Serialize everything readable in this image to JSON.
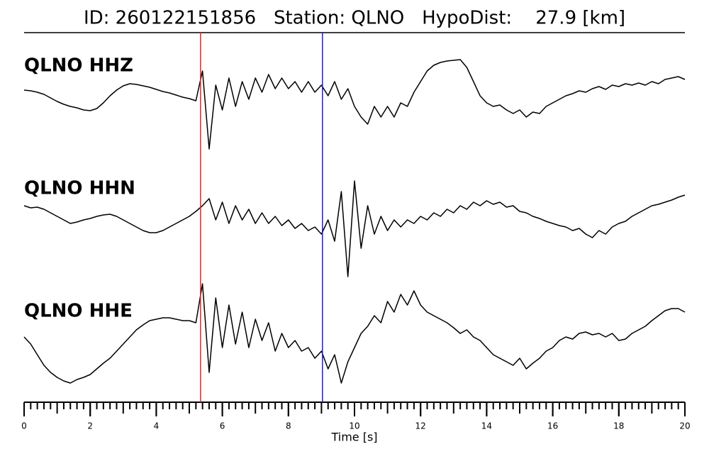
{
  "chart_data": {
    "type": "seismogram",
    "title": "ID: 260122151856   Station: QLNO   HypoDist:    27.9 [km]",
    "xlabel": "Time [s]",
    "xlim": [
      0,
      20
    ],
    "xticks": [
      0,
      2,
      4,
      6,
      8,
      10,
      12,
      14,
      16,
      18,
      20
    ],
    "xminor_step": 0.2,
    "ylim": [
      -80,
      80
    ],
    "line_color": "#000000",
    "label_color": "#4c9a00",
    "picks": [
      {
        "time": 5.34,
        "color": "#e8251f"
      },
      {
        "time": 9.03,
        "color": "#1f1fd8"
      }
    ],
    "x": [
      0,
      0.2,
      0.4,
      0.6,
      0.8,
      1,
      1.2,
      1.4,
      1.6,
      1.8,
      2,
      2.2,
      2.4,
      2.6,
      2.8,
      3,
      3.2,
      3.4,
      3.6,
      3.8,
      4,
      4.2,
      4.4,
      4.6,
      4.8,
      5,
      5.2,
      5.4,
      5.6,
      5.8,
      6,
      6.2,
      6.4,
      6.6,
      6.8,
      7,
      7.2,
      7.4,
      7.6,
      7.8,
      8,
      8.2,
      8.4,
      8.6,
      8.8,
      9,
      9.2,
      9.4,
      9.6,
      9.8,
      10,
      10.2,
      10.4,
      10.6,
      10.8,
      11,
      11.2,
      11.4,
      11.6,
      11.8,
      12,
      12.2,
      12.4,
      12.6,
      12.8,
      13,
      13.2,
      13.4,
      13.6,
      13.8,
      14,
      14.2,
      14.4,
      14.6,
      14.8,
      15,
      15.2,
      15.4,
      15.6,
      15.8,
      16,
      16.2,
      16.4,
      16.6,
      16.8,
      17,
      17.2,
      17.4,
      17.6,
      17.8,
      18,
      18.2,
      18.4,
      18.6,
      18.8,
      19,
      19.2,
      19.4,
      19.6,
      19.8,
      20
    ],
    "series": [
      {
        "name": "QLNO HHZ",
        "values": [
          3,
          2,
          0,
          -3,
          -8,
          -13,
          -17,
          -20,
          -22,
          -25,
          -26,
          -23,
          -15,
          -5,
          3,
          9,
          12,
          11,
          9,
          7,
          4,
          1,
          -1,
          -4,
          -7,
          -9,
          -12,
          30,
          -80,
          10,
          -25,
          20,
          -20,
          15,
          -10,
          20,
          0,
          25,
          5,
          20,
          5,
          15,
          0,
          15,
          0,
          10,
          -5,
          15,
          -10,
          5,
          -20,
          -35,
          -45,
          -20,
          -35,
          -20,
          -35,
          -15,
          -20,
          0,
          15,
          30,
          38,
          42,
          44,
          45,
          46,
          35,
          15,
          -5,
          -15,
          -20,
          -18,
          -25,
          -30,
          -25,
          -35,
          -28,
          -30,
          -20,
          -15,
          -10,
          -5,
          -2,
          2,
          0,
          5,
          8,
          4,
          10,
          8,
          12,
          10,
          13,
          10,
          15,
          12,
          18,
          20,
          22,
          18
        ]
      },
      {
        "name": "QLNO HHN",
        "values": [
          10,
          7,
          8,
          5,
          0,
          -5,
          -10,
          -15,
          -13,
          -10,
          -8,
          -5,
          -3,
          -2,
          -5,
          -10,
          -15,
          -20,
          -25,
          -28,
          -28,
          -25,
          -20,
          -15,
          -10,
          -5,
          2,
          10,
          20,
          -10,
          15,
          -15,
          10,
          -10,
          5,
          -15,
          0,
          -15,
          -5,
          -18,
          -10,
          -22,
          -15,
          -25,
          -20,
          -30,
          -10,
          -40,
          30,
          -90,
          45,
          -50,
          10,
          -30,
          -5,
          -25,
          -10,
          -20,
          -10,
          -15,
          -5,
          -10,
          0,
          -5,
          5,
          0,
          10,
          5,
          15,
          10,
          17,
          12,
          15,
          8,
          10,
          2,
          0,
          -5,
          -8,
          -12,
          -15,
          -18,
          -20,
          -25,
          -22,
          -30,
          -35,
          -25,
          -30,
          -20,
          -15,
          -12,
          -5,
          0,
          5,
          10,
          12,
          15,
          18,
          22,
          25
        ]
      },
      {
        "name": "QLNO HHE",
        "values": [
          -5,
          -15,
          -30,
          -45,
          -55,
          -62,
          -67,
          -70,
          -65,
          -62,
          -58,
          -50,
          -42,
          -35,
          -25,
          -15,
          -5,
          5,
          12,
          18,
          20,
          22,
          22,
          20,
          18,
          18,
          15,
          70,
          -55,
          50,
          -20,
          40,
          -15,
          30,
          -20,
          20,
          -10,
          15,
          -25,
          0,
          -20,
          -10,
          -25,
          -20,
          -35,
          -25,
          -50,
          -30,
          -70,
          -40,
          -20,
          0,
          10,
          25,
          15,
          45,
          30,
          55,
          40,
          60,
          40,
          30,
          25,
          20,
          15,
          8,
          0,
          5,
          -5,
          -10,
          -20,
          -30,
          -35,
          -40,
          -45,
          -35,
          -50,
          -42,
          -35,
          -25,
          -20,
          -10,
          -5,
          -8,
          0,
          2,
          -2,
          0,
          -5,
          0,
          -10,
          -8,
          0,
          5,
          10,
          18,
          25,
          32,
          35,
          35,
          30
        ]
      }
    ]
  }
}
